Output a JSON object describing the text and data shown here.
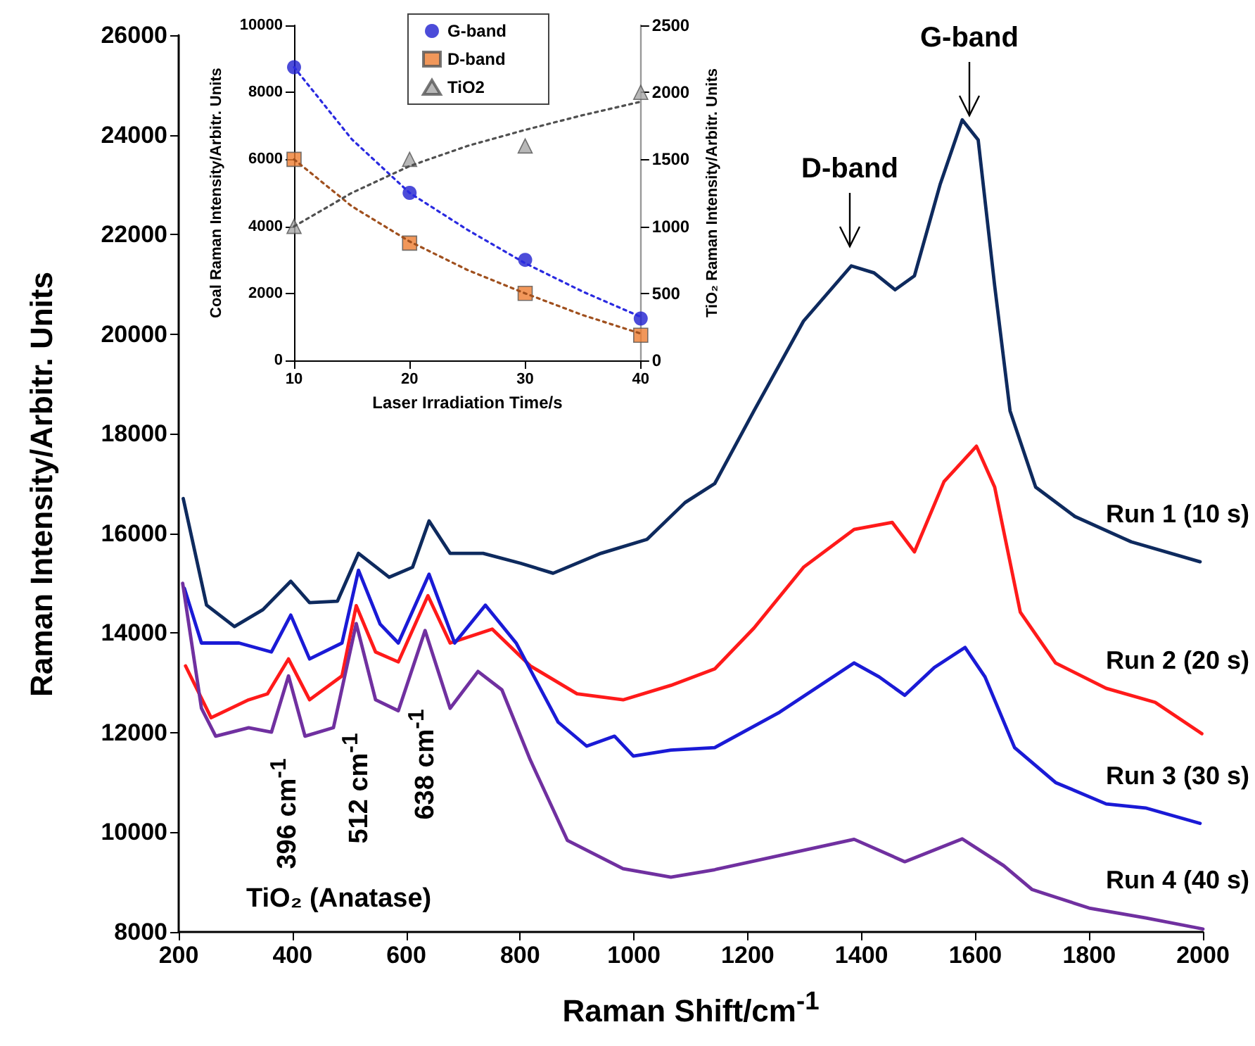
{
  "chart_data": [
    {
      "type": "line",
      "xlabel": "Raman Shift/cm$^{-1}$",
      "ylabel": "Raman Intensity/Arbitr. Units",
      "xlim": [
        200,
        2000
      ],
      "xticks": [
        200,
        400,
        600,
        800,
        1000,
        1200,
        1400,
        1600,
        1800,
        2000
      ],
      "ylim": [
        8000,
        26000
      ],
      "yticks": [
        8000,
        10000,
        12000,
        14000,
        16000,
        18000,
        20000,
        22000,
        24000,
        26000
      ],
      "grid": false,
      "legend": false,
      "marker": "none",
      "line_style": "solid",
      "annotations": [
        "D-band",
        "G-band",
        "396 cm$^{-1}$",
        "512 cm$^{-1}$",
        "638 cm$^{-1}$",
        "TiO₂ (Anatase)"
      ],
      "series": [
        {
          "name": "Run 1 (10 s)",
          "color": "#0e2a5e",
          "x": [
            208,
            249,
            298,
            348,
            397,
            430,
            479,
            516,
            570,
            611,
            640,
            677,
            735,
            801,
            858,
            942,
            1023,
            1090,
            1142,
            1211,
            1298,
            1382,
            1422,
            1459,
            1493,
            1538,
            1577,
            1605,
            1634,
            1661,
            1706,
            1775,
            1874,
            1995
          ],
          "values": [
            16700,
            14560,
            14130,
            14470,
            15040,
            14610,
            14640,
            15600,
            15120,
            15320,
            16250,
            15600,
            15600,
            15400,
            15200,
            15600,
            15880,
            16620,
            17000,
            18460,
            20260,
            21370,
            21230,
            20890,
            21170,
            23000,
            24300,
            23900,
            20970,
            18460,
            16930,
            16340,
            15830,
            15430
          ]
        },
        {
          "name": "Run 2 (20 s)",
          "color": "#ff1a1a",
          "x": [
            212,
            257,
            323,
            356,
            393,
            430,
            487,
            512,
            546,
            586,
            638,
            677,
            751,
            818,
            900,
            981,
            1065,
            1142,
            1211,
            1298,
            1387,
            1454,
            1493,
            1545,
            1602,
            1634,
            1679,
            1741,
            1830,
            1916,
            1998
          ],
          "values": [
            13340,
            12300,
            12660,
            12780,
            13480,
            12660,
            13140,
            14550,
            13620,
            13420,
            14750,
            13800,
            14080,
            13340,
            12780,
            12660,
            12950,
            13280,
            14100,
            15320,
            16080,
            16220,
            15630,
            17040,
            17750,
            16930,
            14420,
            13400,
            12890,
            12610,
            11980
          ]
        },
        {
          "name": "Run 3 (30 s)",
          "color": "#1a1ad6",
          "x": [
            210,
            240,
            306,
            363,
            397,
            430,
            487,
            516,
            554,
            586,
            640,
            685,
            739,
            793,
            867,
            917,
            966,
            999,
            1065,
            1142,
            1256,
            1387,
            1431,
            1476,
            1528,
            1582,
            1617,
            1669,
            1741,
            1830,
            1899,
            1995
          ],
          "values": [
            14900,
            13800,
            13800,
            13620,
            14360,
            13480,
            13800,
            15260,
            14180,
            13800,
            15180,
            13800,
            14560,
            13800,
            12210,
            11730,
            11930,
            11530,
            11650,
            11700,
            12410,
            13400,
            13120,
            12750,
            13310,
            13710,
            13120,
            11700,
            11000,
            10570,
            10490,
            10180
          ]
        },
        {
          "name": "Run 4 (40 s)",
          "color": "#7030a0",
          "x": [
            207,
            240,
            265,
            323,
            363,
            393,
            422,
            472,
            512,
            546,
            586,
            633,
            677,
            726,
            768,
            818,
            883,
            981,
            1065,
            1142,
            1387,
            1476,
            1577,
            1650,
            1700,
            1800,
            1900,
            2000
          ],
          "values": [
            15000,
            12490,
            11930,
            12100,
            12010,
            13140,
            11930,
            12100,
            14190,
            12660,
            12440,
            14050,
            12490,
            13230,
            12860,
            11450,
            9840,
            9270,
            9100,
            9250,
            9860,
            9410,
            9870,
            9330,
            8850,
            8480,
            8280,
            8060
          ]
        }
      ]
    },
    {
      "type": "scatter",
      "xlabel": "Laser Irradiation Time/s",
      "ylabel": "Coal Raman Intensity/Arbitr. Units",
      "y2label": "TiO₂ Raman Intensity/Arbitr. Units",
      "xlim": [
        10,
        40
      ],
      "xticks": [
        10,
        20,
        30,
        40
      ],
      "ylim": [
        0,
        10000
      ],
      "yticks": [
        0,
        2000,
        4000,
        6000,
        8000,
        10000
      ],
      "y2lim": [
        0,
        2500
      ],
      "y2ticks": [
        0,
        500,
        1000,
        1500,
        2000,
        2500
      ],
      "grid": false,
      "legend": "top",
      "series": [
        {
          "name": "G-band",
          "color": "#1f1fd0",
          "marker": "circle",
          "x": [
            10,
            20,
            30,
            40
          ],
          "values": [
            8750,
            5000,
            3000,
            1250
          ]
        },
        {
          "name": "D-band",
          "color": "#ed7d31",
          "marker": "square",
          "x": [
            10,
            20,
            30,
            40
          ],
          "values": [
            6000,
            3500,
            2000,
            750
          ]
        },
        {
          "name": "TiO2",
          "color": "#a6a6a6",
          "marker": "triangle",
          "axis": "y2",
          "x": [
            10,
            20,
            30,
            40
          ],
          "values": [
            1000,
            1500,
            1600,
            2000
          ]
        },
        {
          "type": "line",
          "color": "#2a2ae0",
          "marker": "none",
          "line_style": "dotted",
          "x": [
            10,
            15,
            20,
            25,
            30,
            35,
            40
          ],
          "values": [
            8750,
            6600,
            5000,
            3900,
            2900,
            2050,
            1300
          ]
        },
        {
          "type": "line",
          "color": "#a0501e",
          "marker": "none",
          "line_style": "dotted",
          "x": [
            10,
            15,
            20,
            25,
            30,
            35,
            40
          ],
          "values": [
            6000,
            4600,
            3550,
            2700,
            2000,
            1350,
            800
          ]
        },
        {
          "type": "line",
          "color": "#505050",
          "marker": "none",
          "line_style": "dotted",
          "axis": "y2",
          "x": [
            10,
            15,
            20,
            25,
            30,
            35,
            40
          ],
          "values": [
            1000,
            1250,
            1450,
            1600,
            1720,
            1830,
            1930
          ]
        }
      ]
    }
  ]
}
